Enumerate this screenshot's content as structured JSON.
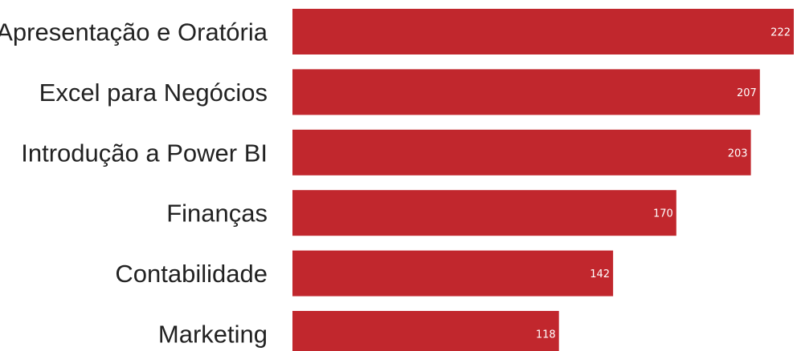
{
  "colors": {
    "bar": "#c1272d",
    "category_text": "#222222",
    "value_text": "#ffffff",
    "background": "#ffffff"
  },
  "chart_data": {
    "type": "bar",
    "orientation": "horizontal",
    "categories": [
      "Apresentação e Oratória",
      "Excel para Negócios",
      "Introdução a Power BI",
      "Finanças",
      "Contabilidade",
      "Marketing"
    ],
    "values": [
      222,
      207,
      203,
      170,
      142,
      118
    ],
    "data_labels": [
      "222",
      "207",
      "203",
      "170",
      "142",
      "118"
    ],
    "title": "",
    "xlabel": "",
    "ylabel": "",
    "xlim": [
      0,
      222
    ],
    "grid": false,
    "legend": "none"
  }
}
